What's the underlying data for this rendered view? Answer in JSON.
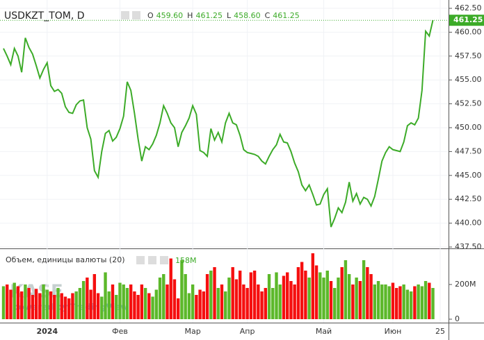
{
  "chart_data": [
    {
      "type": "line",
      "title": "USDKZT_TOM, D",
      "ohlc": [
        {
          "name": "O",
          "value": {
            "value": 459.6,
            "label": "459.60"
          }
        },
        {
          "name": "H",
          "value": {
            "value": 461.25,
            "label": "461.25"
          }
        },
        {
          "name": "L",
          "value": {
            "value": 458.6,
            "label": "458.60"
          }
        },
        {
          "name": "C",
          "value": {
            "value": 461.25,
            "label": "461.25"
          }
        }
      ],
      "last_price": {
        "value": 461.25,
        "label": "461.25"
      },
      "categories": [
        null,
        null,
        null,
        null,
        null,
        null,
        null,
        null,
        null,
        null,
        null,
        null,
        "2024",
        null,
        null,
        null,
        null,
        null,
        null,
        null,
        null,
        null,
        null,
        null,
        null,
        null,
        null,
        null,
        null,
        null,
        null,
        null,
        "Фев",
        null,
        null,
        null,
        null,
        null,
        null,
        null,
        null,
        null,
        null,
        null,
        null,
        null,
        null,
        null,
        null,
        null,
        null,
        null,
        "Мар",
        null,
        null,
        null,
        null,
        null,
        null,
        null,
        null,
        null,
        null,
        null,
        null,
        null,
        null,
        "Апр",
        null,
        null,
        null,
        null,
        null,
        null,
        null,
        null,
        null,
        null,
        null,
        null,
        null,
        null,
        null,
        null,
        null,
        null,
        null,
        null,
        "Май",
        null,
        null,
        null,
        null,
        null,
        null,
        null,
        null,
        null,
        null,
        null,
        null,
        null,
        null,
        null,
        null,
        null,
        null,
        "Июн",
        null,
        null,
        null,
        null,
        null,
        null,
        null,
        null,
        null,
        null,
        null,
        null,
        "25"
      ],
      "series": [
        {
          "name": "USDKZT_TOM",
          "color": "#3cab28",
          "values": [
            458.3,
            457.5,
            456.6,
            458.3,
            457.5,
            455.8,
            459.4,
            458.4,
            457.7,
            456.5,
            455.2,
            456.1,
            456.8,
            454.4,
            453.8,
            454.0,
            453.6,
            452.2,
            451.6,
            451.5,
            452.4,
            452.8,
            452.9,
            450.0,
            448.8,
            445.5,
            444.8,
            447.5,
            449.4,
            449.7,
            448.6,
            449.0,
            449.9,
            451.2,
            454.8,
            453.9,
            451.5,
            448.8,
            446.5,
            448.0,
            447.7,
            448.3,
            449.2,
            450.5,
            452.3,
            451.5,
            450.5,
            450.0,
            448.0,
            449.5,
            450.2,
            451.0,
            452.3,
            451.4,
            447.6,
            447.4,
            447.0,
            449.9,
            448.7,
            449.5,
            448.5,
            450.5,
            451.5,
            450.5,
            450.3,
            449.2,
            447.7,
            447.4,
            447.3,
            447.2,
            447.0,
            446.5,
            446.2,
            447.0,
            447.7,
            448.2,
            449.3,
            448.5,
            448.4,
            447.5,
            446.3,
            445.4,
            444.0,
            443.4,
            444.0,
            443.0,
            441.9,
            442.0,
            443.0,
            443.6,
            439.6,
            440.5,
            441.6,
            441.1,
            442.2,
            444.3,
            442.3,
            443.1,
            442.0,
            442.7,
            442.5,
            441.8,
            442.8,
            444.6,
            446.5,
            447.4,
            448.0,
            447.7,
            447.6,
            447.5,
            448.5,
            450.2,
            450.5,
            450.3,
            451.0,
            453.9,
            460.1,
            459.6,
            461.25,
            null,
            null
          ]
        }
      ],
      "ylim": [
        437.5,
        462.5
      ],
      "yticks": [
        {
          "value": 437.5,
          "label": "437.50"
        },
        {
          "value": 440,
          "label": "440.00"
        },
        {
          "value": 442.5,
          "label": "442.50"
        },
        {
          "value": 445,
          "label": "445.00"
        },
        {
          "value": 447.5,
          "label": "447.50"
        },
        {
          "value": 450,
          "label": "450.00"
        },
        {
          "value": 452.5,
          "label": "452.50"
        },
        {
          "value": 455,
          "label": "455.00"
        },
        {
          "value": 457.5,
          "label": "457.50"
        },
        {
          "value": 460,
          "label": "460.00"
        },
        {
          "value": 462.5,
          "label": "462.50"
        }
      ],
      "grid": true
    },
    {
      "type": "bar",
      "title": "Объем, единицы валюты (20)",
      "ma_label": "158M",
      "up_color": "#5cb82a",
      "down_color": "#f50f0f",
      "values": [
        190,
        200,
        170,
        210,
        190,
        160,
        200,
        180,
        140,
        175,
        150,
        200,
        170,
        160,
        140,
        180,
        150,
        130,
        120,
        150,
        160,
        180,
        220,
        240,
        170,
        260,
        150,
        130,
        270,
        160,
        200,
        140,
        210,
        200,
        180,
        200,
        160,
        140,
        200,
        180,
        150,
        130,
        170,
        240,
        260,
        200,
        350,
        230,
        120,
        340,
        260,
        150,
        200,
        140,
        170,
        160,
        260,
        280,
        300,
        180,
        200,
        160,
        240,
        300,
        230,
        280,
        200,
        180,
        270,
        280,
        200,
        160,
        180,
        260,
        180,
        270,
        200,
        250,
        270,
        220,
        200,
        300,
        330,
        280,
        240,
        380,
        310,
        270,
        240,
        280,
        220,
        180,
        240,
        300,
        340,
        260,
        200,
        240,
        220,
        340,
        300,
        260,
        200,
        220,
        200,
        200,
        190,
        210,
        180,
        190,
        200,
        170,
        160,
        190,
        200,
        190,
        220,
        210,
        180,
        null,
        null
      ],
      "ylim": [
        0,
        400
      ],
      "yticks": [
        0,
        {
          "value": 200,
          "label": "200M"
        }
      ]
    }
  ],
  "watermark": {
    "logo": "KASE",
    "powered": "powered by TradingView"
  }
}
